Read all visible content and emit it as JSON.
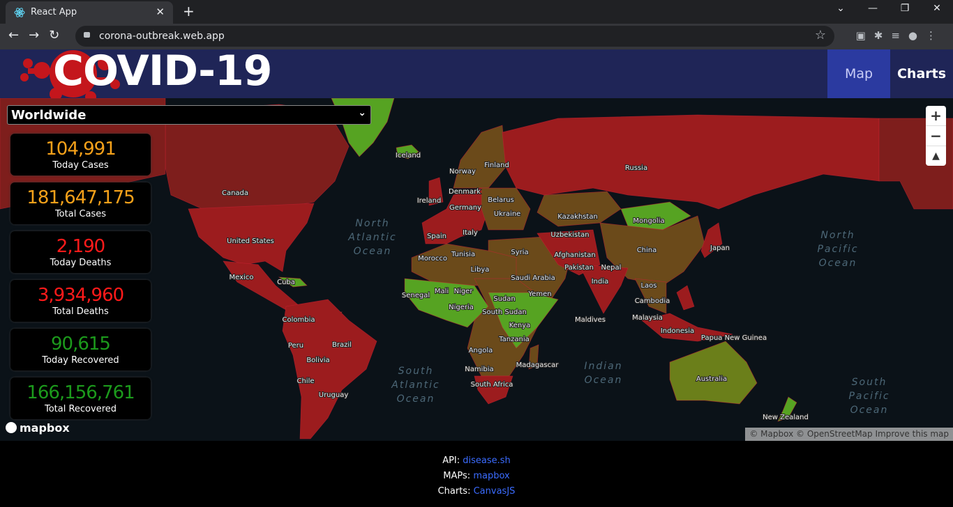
{
  "browser": {
    "tab_title": "React App",
    "url": "corona-outbreak.web.app"
  },
  "header": {
    "logo": "COVID-19",
    "nav": [
      "Map",
      "Charts"
    ]
  },
  "selector": {
    "value": "Worldwide"
  },
  "stats": [
    {
      "value": "104,991",
      "label": "Today Cases"
    },
    {
      "value": "181,647,175",
      "label": "Total Cases"
    },
    {
      "value": "2,190",
      "label": "Today Deaths"
    },
    {
      "value": "3,934,960",
      "label": "Total Deaths"
    },
    {
      "value": "90,615",
      "label": "Today Recovered"
    },
    {
      "value": "166,156,761",
      "label": "Total Recovered"
    }
  ],
  "map": {
    "countries": [
      "Iceland",
      "Norway",
      "Finland",
      "Russia",
      "Canada",
      "Denmark",
      "Belarus",
      "Ireland",
      "Germany",
      "Ukraine",
      "Kazakhstan",
      "Mongolia",
      "United States",
      "Spain",
      "Italy",
      "Uzbekistan",
      "Japan",
      "China",
      "Syria",
      "Tunisia",
      "Morocco",
      "Afghanistan",
      "Pakistan",
      "Nepal",
      "Libya",
      "Mexico",
      "Cuba",
      "Saudi Arabia",
      "India",
      "Laos",
      "Mali",
      "Niger",
      "Yemen",
      "Senegal",
      "Sudan",
      "Cambodia",
      "Nigeria",
      "South Sudan",
      "Malaysia",
      "Colombia",
      "Maldives",
      "Kenya",
      "Indonesia",
      "Papua New Guinea",
      "Tanzania",
      "Brazil",
      "Peru",
      "Angola",
      "Bolivia",
      "Madagascar",
      "Namibia",
      "Chile",
      "South Africa",
      "Australia",
      "Uruguay",
      "New Zealand"
    ],
    "oceans": [
      "North Atlantic Ocean",
      "North Pacific Ocean",
      "South Atlantic Ocean",
      "Indian Ocean",
      "South Pacific Ocean"
    ],
    "logo": "mapbox",
    "attribution": "© Mapbox © OpenStreetMap Improve this map"
  },
  "footer": [
    {
      "label": "API:",
      "link": "disease.sh"
    },
    {
      "label": "MAPs:",
      "link": "mapbox"
    },
    {
      "label": "Charts:",
      "link": "CanvasJS"
    }
  ]
}
